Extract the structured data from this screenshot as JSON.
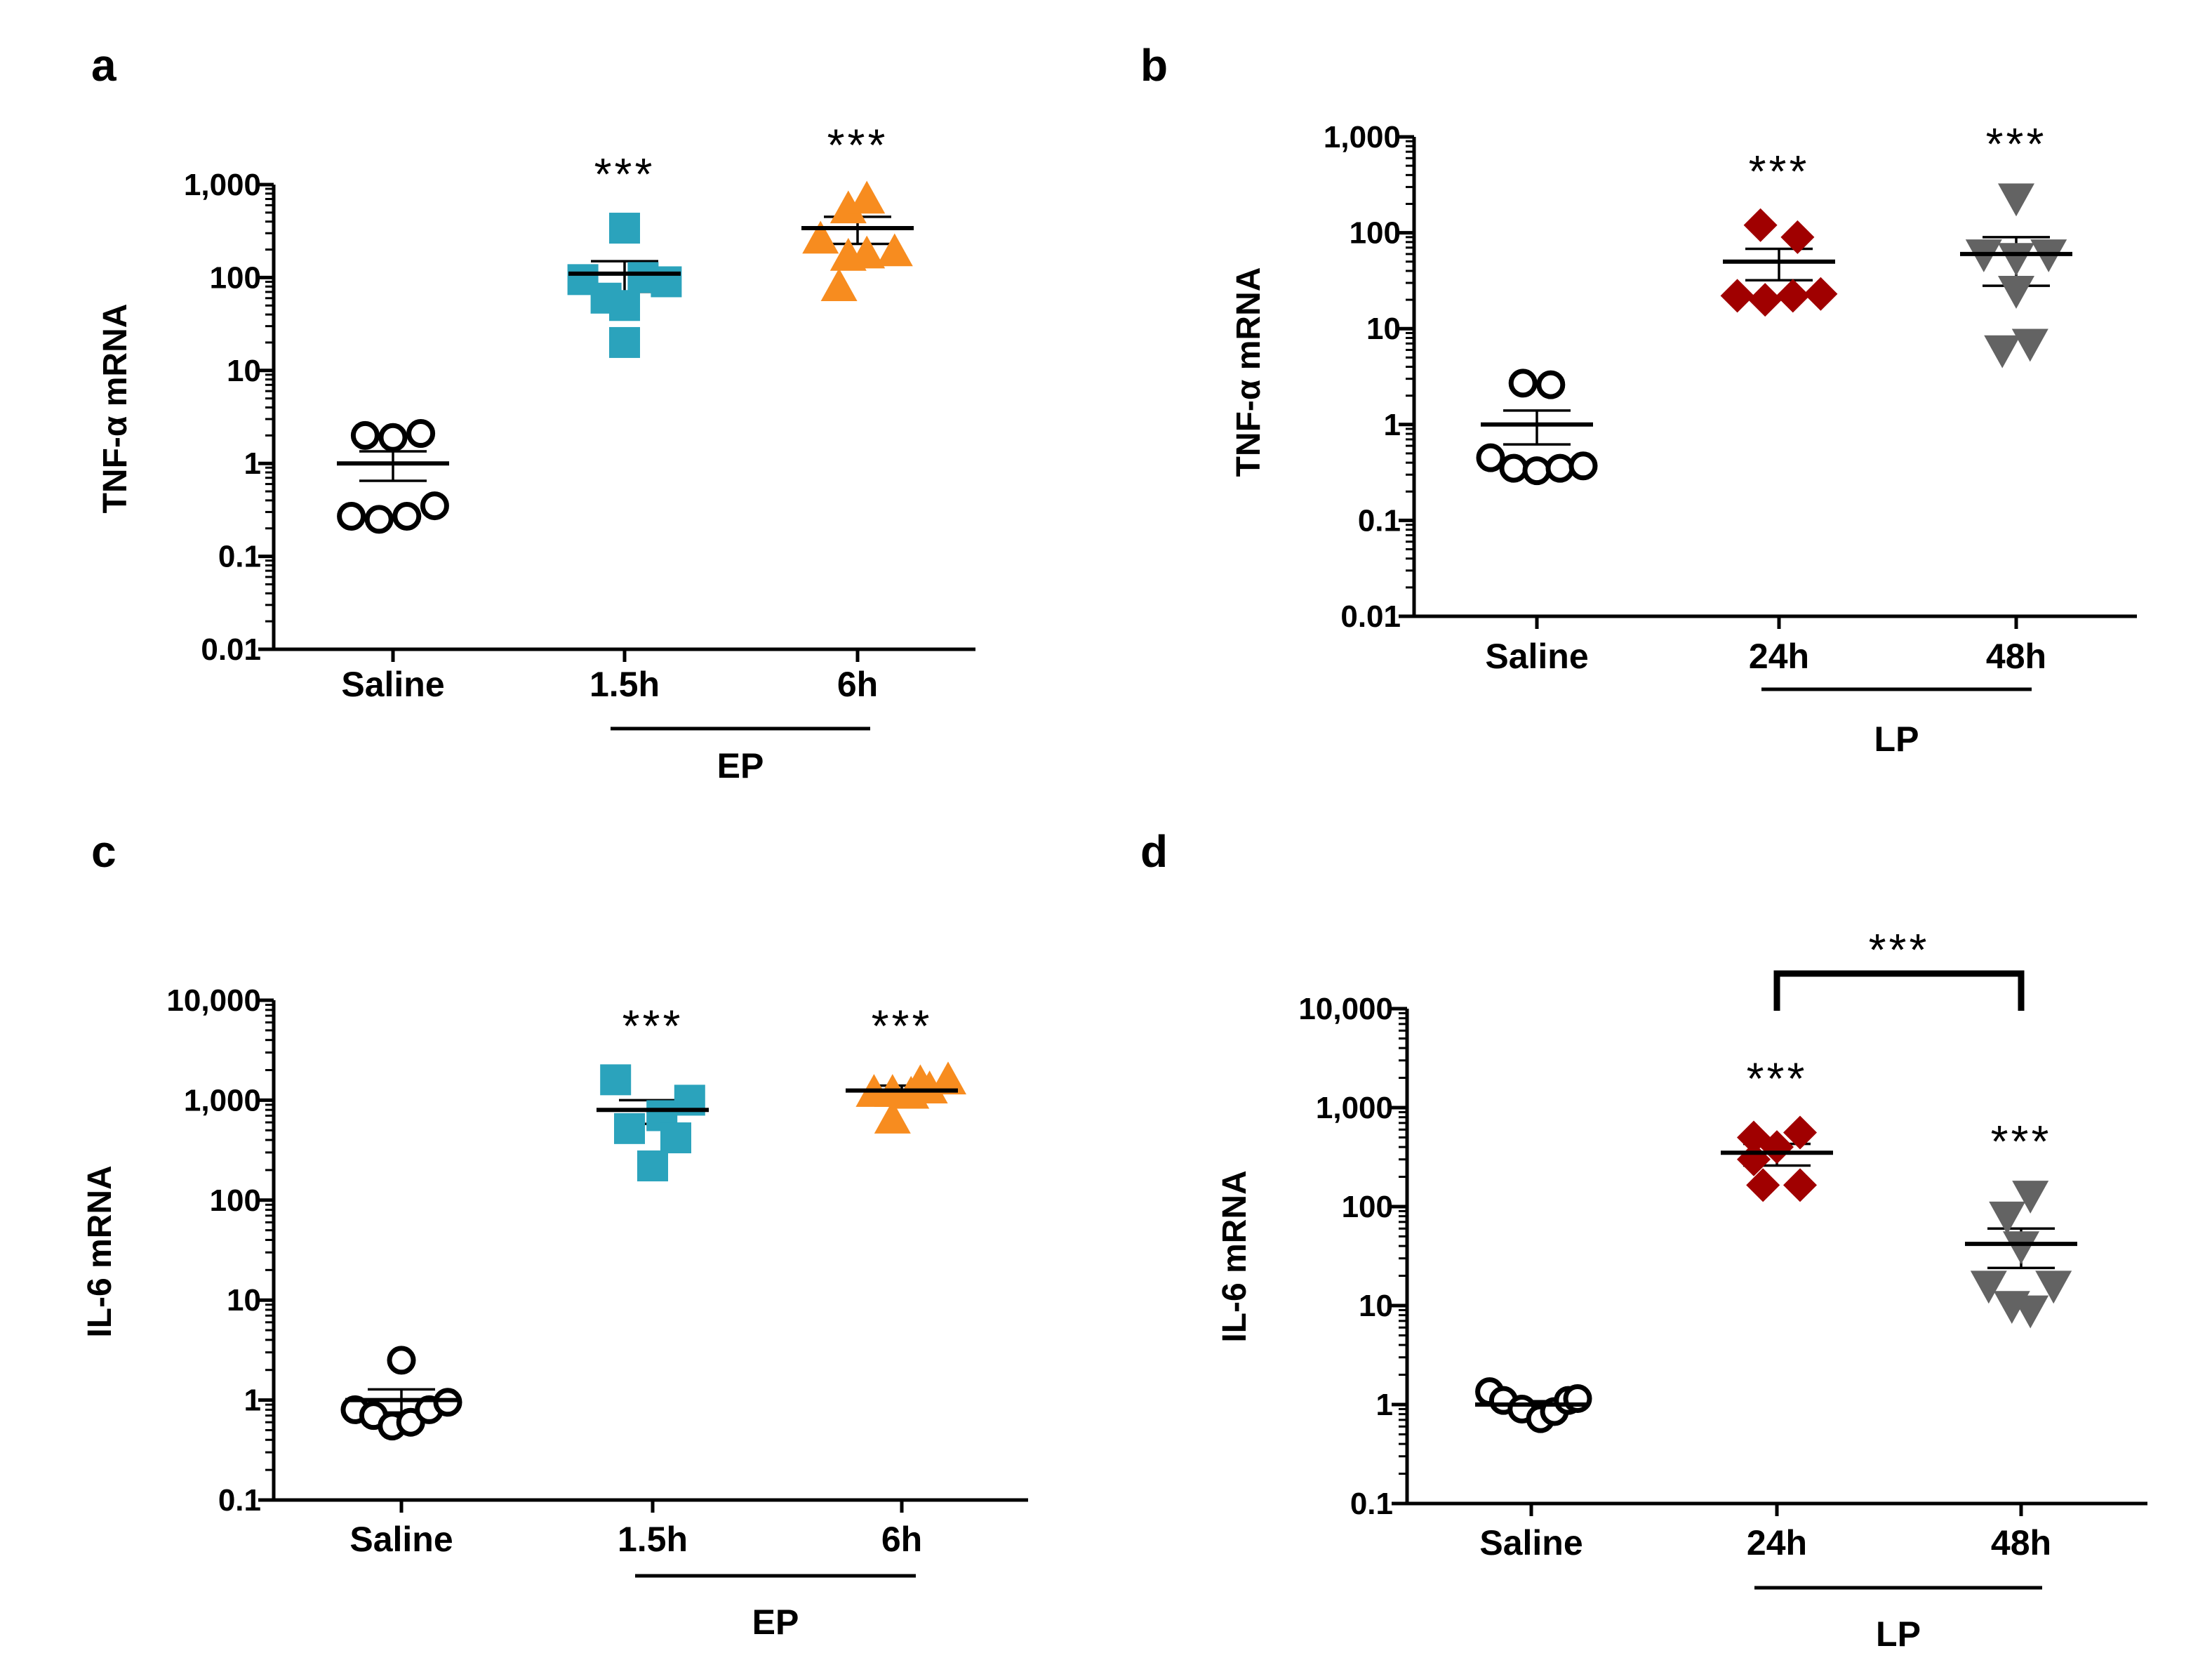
{
  "chart_data": [
    {
      "panel": "a",
      "type": "scatter",
      "ylabel": "TNF-α mRNA",
      "yscale": "log",
      "ylim": [
        0.01,
        1000
      ],
      "yticks": [
        {
          "value": 0.01,
          "label": "0.01"
        },
        {
          "value": 0.1,
          "label": "0.1"
        },
        {
          "value": 1,
          "label": "1"
        },
        {
          "value": 10,
          "label": "10"
        },
        {
          "value": 100,
          "label": "100"
        },
        {
          "value": 1000,
          "label": "1,000"
        }
      ],
      "categories": [
        "Saline",
        "1.5h",
        "6h"
      ],
      "group_label": "EP",
      "groups": [
        {
          "name": "Saline",
          "marker": "circle-open",
          "color": "#000000",
          "values": [
            0.27,
            0.25,
            0.27,
            0.35,
            2.0,
            1.9,
            2.1
          ],
          "offsets": [
            -0.27,
            -0.09,
            0.09,
            0.27,
            -0.18,
            0.0,
            0.18
          ],
          "mean": 1.0,
          "sem": [
            0.65,
            1.35
          ],
          "stars": ""
        },
        {
          "name": "1.5h",
          "marker": "square",
          "color": "#2BA3BC",
          "values": [
            340,
            95,
            60,
            100,
            90,
            50,
            20
          ],
          "offsets": [
            0.0,
            -0.27,
            -0.12,
            0.12,
            0.27,
            0.0,
            0.0
          ],
          "mean": 110,
          "sem": [
            70,
            150
          ],
          "stars": "***"
        },
        {
          "name": "6h",
          "marker": "triangle-up",
          "color": "#F78C1F",
          "values": [
            550,
            700,
            260,
            190,
            180,
            170,
            80
          ],
          "offsets": [
            -0.06,
            0.06,
            -0.24,
            0.24,
            0.06,
            -0.06,
            -0.12
          ],
          "mean": 340,
          "sem": [
            230,
            450
          ],
          "stars": "***"
        }
      ]
    },
    {
      "panel": "b",
      "type": "scatter",
      "ylabel": "TNF-α mRNA",
      "yscale": "log",
      "ylim": [
        0.01,
        1000
      ],
      "yticks": [
        {
          "value": 0.01,
          "label": "0.01"
        },
        {
          "value": 0.1,
          "label": "0.1"
        },
        {
          "value": 1,
          "label": "1"
        },
        {
          "value": 10,
          "label": "10"
        },
        {
          "value": 100,
          "label": "100"
        },
        {
          "value": 1000,
          "label": "1,000"
        }
      ],
      "categories": [
        "Saline",
        "24h",
        "48h"
      ],
      "group_label": "LP",
      "groups": [
        {
          "name": "Saline",
          "marker": "circle-open",
          "color": "#000000",
          "values": [
            2.7,
            2.6,
            0.45,
            0.35,
            0.33,
            0.35,
            0.37
          ],
          "offsets": [
            -0.09,
            0.09,
            -0.3,
            -0.15,
            0.0,
            0.15,
            0.3
          ],
          "mean": 1.0,
          "sem": [
            0.62,
            1.4
          ],
          "stars": ""
        },
        {
          "name": "24h",
          "marker": "diamond",
          "color": "#A00000",
          "values": [
            120,
            90,
            22,
            20,
            22,
            23
          ],
          "offsets": [
            -0.12,
            0.12,
            -0.27,
            -0.09,
            0.09,
            0.27
          ],
          "mean": 50,
          "sem": [
            32,
            68
          ],
          "stars": "***"
        },
        {
          "name": "48h",
          "marker": "triangle-down",
          "color": "#636363",
          "values": [
            230,
            60,
            55,
            60,
            25,
            6,
            7
          ],
          "offsets": [
            0.0,
            -0.21,
            0.0,
            0.21,
            0.0,
            -0.09,
            0.09
          ],
          "mean": 60,
          "sem": [
            28,
            90
          ],
          "stars": "***"
        }
      ]
    },
    {
      "panel": "c",
      "type": "scatter",
      "ylabel": "IL-6 mRNA",
      "yscale": "log",
      "ylim": [
        0.1,
        10000
      ],
      "yticks": [
        {
          "value": 0.1,
          "label": "0.1"
        },
        {
          "value": 1,
          "label": "1"
        },
        {
          "value": 10,
          "label": "10"
        },
        {
          "value": 100,
          "label": "100"
        },
        {
          "value": 1000,
          "label": "1,000"
        },
        {
          "value": 10000,
          "label": "10,000"
        }
      ],
      "categories": [
        "Saline",
        "1.5h",
        "6h"
      ],
      "group_label": "EP",
      "groups": [
        {
          "name": "Saline",
          "marker": "circle-open",
          "color": "#000000",
          "values": [
            2.5,
            0.8,
            0.7,
            0.55,
            0.6,
            0.8,
            0.95
          ],
          "offsets": [
            0.0,
            -0.3,
            -0.18,
            -0.06,
            0.06,
            0.18,
            0.3
          ],
          "mean": 1.0,
          "sem": [
            0.75,
            1.28
          ],
          "stars": ""
        },
        {
          "name": "1.5h",
          "marker": "square",
          "color": "#2BA3BC",
          "values": [
            1600,
            1000,
            700,
            520,
            420,
            220
          ],
          "offsets": [
            -0.24,
            0.24,
            0.06,
            -0.15,
            0.15,
            0.0
          ],
          "mean": 800,
          "sem": [
            580,
            1000
          ],
          "stars": "***"
        },
        {
          "name": "6h",
          "marker": "triangle-up",
          "color": "#F78C1F",
          "values": [
            1500,
            1600,
            1200,
            1200,
            1150,
            1300,
            650
          ],
          "offsets": [
            0.12,
            0.3,
            -0.18,
            -0.06,
            0.06,
            0.18,
            -0.06
          ],
          "mean": 1250,
          "sem": [
            1150,
            1400
          ],
          "stars": "***"
        }
      ]
    },
    {
      "panel": "d",
      "type": "scatter",
      "ylabel": "IL-6 mRNA",
      "yscale": "log",
      "ylim": [
        0.1,
        10000
      ],
      "yticks": [
        {
          "value": 0.1,
          "label": "0.1"
        },
        {
          "value": 1,
          "label": "1"
        },
        {
          "value": 10,
          "label": "10"
        },
        {
          "value": 100,
          "label": "100"
        },
        {
          "value": 1000,
          "label": "1,000"
        },
        {
          "value": 10000,
          "label": "10,000"
        }
      ],
      "categories": [
        "Saline",
        "24h",
        "48h"
      ],
      "group_label": "LP",
      "groups": [
        {
          "name": "Saline",
          "marker": "circle-open",
          "color": "#000000",
          "values": [
            1.35,
            1.1,
            0.9,
            0.72,
            0.85,
            1.1,
            1.15
          ],
          "offsets": [
            -0.27,
            -0.18,
            -0.06,
            0.06,
            0.15,
            0.24,
            0.3
          ],
          "mean": 1.0,
          "sem": [
            0.93,
            1.08
          ],
          "stars": ""
        },
        {
          "name": "24h",
          "marker": "diamond",
          "color": "#A00000",
          "values": [
            500,
            560,
            400,
            300,
            165,
            165
          ],
          "offsets": [
            -0.15,
            0.15,
            0.0,
            -0.15,
            -0.09,
            0.15
          ],
          "mean": 350,
          "sem": [
            260,
            430
          ],
          "stars": "***"
        },
        {
          "name": "48h",
          "marker": "triangle-down",
          "color": "#636363",
          "values": [
            130,
            80,
            40,
            16,
            16,
            10,
            9
          ],
          "offsets": [
            0.06,
            -0.09,
            0.0,
            -0.21,
            0.21,
            -0.06,
            0.06
          ],
          "mean": 42,
          "sem": [
            24,
            60
          ],
          "stars": "***"
        }
      ],
      "comparison": {
        "from": "24h",
        "to": "48h",
        "stars": "***"
      }
    }
  ]
}
